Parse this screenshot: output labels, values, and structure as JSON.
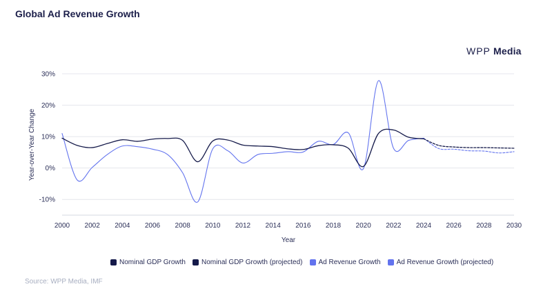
{
  "header": {
    "title": "Global Ad Revenue Growth",
    "brand_light": "WPP",
    "brand_bold": "Media"
  },
  "footer": {
    "source": "Source: WPP Media, IMF"
  },
  "chart_data": {
    "type": "line",
    "title": "Global Ad Revenue Growth",
    "xlabel": "Year",
    "ylabel": "Year-over-Year Change",
    "xlim": [
      2000,
      2030
    ],
    "ylim": [
      -15,
      30
    ],
    "x_ticks": [
      2000,
      2002,
      2004,
      2006,
      2008,
      2010,
      2012,
      2014,
      2016,
      2018,
      2020,
      2022,
      2024,
      2026,
      2028,
      2030
    ],
    "y_ticks": [
      -10,
      0,
      10,
      20,
      30
    ],
    "y_tick_labels": [
      "-10%",
      "0%",
      "10%",
      "20%",
      "30%"
    ],
    "grid": "horizontal",
    "legend_position": "bottom",
    "series": [
      {
        "name": "Nominal GDP Growth",
        "color": "#151a4a",
        "dashed": false,
        "x": [
          2000,
          2001,
          2002,
          2003,
          2004,
          2005,
          2006,
          2007,
          2008,
          2009,
          2010,
          2011,
          2012,
          2013,
          2014,
          2015,
          2016,
          2017,
          2018,
          2019,
          2020,
          2021,
          2022,
          2023,
          2024
        ],
        "values": [
          9.5,
          7.2,
          6.5,
          7.8,
          9.0,
          8.5,
          9.2,
          9.4,
          8.8,
          2.0,
          8.6,
          8.9,
          7.3,
          7.0,
          6.8,
          6.1,
          5.9,
          7.1,
          7.4,
          6.3,
          0.5,
          11.0,
          12.1,
          9.8,
          9.3
        ]
      },
      {
        "name": "Nominal GDP Growth (projected)",
        "color": "#151a4a",
        "dashed": true,
        "x": [
          2024,
          2025,
          2026,
          2027,
          2028,
          2029,
          2030
        ],
        "values": [
          9.3,
          7.2,
          6.7,
          6.5,
          6.5,
          6.4,
          6.3
        ]
      },
      {
        "name": "Ad Revenue Growth",
        "color": "#6273ee",
        "dashed": false,
        "x": [
          2000,
          2001,
          2002,
          2003,
          2004,
          2005,
          2006,
          2007,
          2008,
          2009,
          2010,
          2011,
          2012,
          2013,
          2014,
          2015,
          2016,
          2017,
          2018,
          2019,
          2020,
          2021,
          2022,
          2023,
          2024
        ],
        "values": [
          11.0,
          -3.8,
          0.2,
          4.3,
          7.0,
          6.8,
          6.0,
          4.3,
          -1.5,
          -10.8,
          6.1,
          5.5,
          1.6,
          4.3,
          4.7,
          5.2,
          5.1,
          8.5,
          7.5,
          11.2,
          -0.2,
          27.8,
          6.3,
          8.8,
          9.5
        ]
      },
      {
        "name": "Ad Revenue Growth (projected)",
        "color": "#6273ee",
        "dashed": true,
        "x": [
          2024,
          2025,
          2026,
          2027,
          2028,
          2029,
          2030
        ],
        "values": [
          9.5,
          6.2,
          6.0,
          5.5,
          5.4,
          4.8,
          5.2
        ]
      }
    ]
  }
}
